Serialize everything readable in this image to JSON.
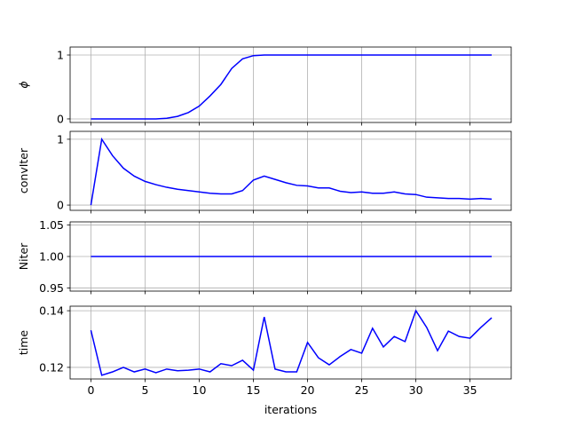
{
  "chart_data": [
    {
      "type": "line",
      "ylabel": "ϕ",
      "ylabel_italic": true,
      "grid": true,
      "x": [
        0,
        1,
        2,
        3,
        4,
        5,
        6,
        7,
        8,
        9,
        10,
        11,
        12,
        13,
        14,
        15,
        16,
        17,
        18,
        19,
        20,
        21,
        22,
        23,
        24,
        25,
        26,
        27,
        28,
        29,
        30,
        31,
        32,
        33,
        34,
        35,
        36,
        37
      ],
      "xlim": [
        -1.92,
        38.8
      ],
      "xticks": [
        0,
        5,
        10,
        15,
        20,
        25,
        30,
        35
      ],
      "ylim": [
        -0.056,
        1.125
      ],
      "yticks": [
        0,
        1
      ],
      "series": [
        {
          "name": "phi",
          "color": "#0000ff",
          "values": [
            0,
            0,
            0,
            0,
            0,
            0,
            0,
            0.01,
            0.04,
            0.1,
            0.2,
            0.36,
            0.54,
            0.79,
            0.94,
            0.99,
            1,
            1,
            1,
            1,
            1,
            1,
            1,
            1,
            1,
            1,
            1,
            1,
            1,
            1,
            1,
            1,
            1,
            1,
            1,
            1,
            1,
            1
          ]
        }
      ]
    },
    {
      "type": "line",
      "ylabel": "convIter",
      "grid": true,
      "x": [
        0,
        1,
        2,
        3,
        4,
        5,
        6,
        7,
        8,
        9,
        10,
        11,
        12,
        13,
        14,
        15,
        16,
        17,
        18,
        19,
        20,
        21,
        22,
        23,
        24,
        25,
        26,
        27,
        28,
        29,
        30,
        31,
        32,
        33,
        34,
        35,
        36,
        37
      ],
      "xlim": [
        -1.92,
        38.8
      ],
      "xticks": [
        0,
        5,
        10,
        15,
        20,
        25,
        30,
        35
      ],
      "ylim": [
        -0.08,
        1.12
      ],
      "yticks": [
        0,
        1
      ],
      "series": [
        {
          "name": "convIter",
          "color": "#0000ff",
          "values": [
            0,
            1,
            0.75,
            0.56,
            0.44,
            0.36,
            0.31,
            0.27,
            0.24,
            0.22,
            0.2,
            0.18,
            0.17,
            0.17,
            0.22,
            0.38,
            0.44,
            0.39,
            0.34,
            0.3,
            0.29,
            0.26,
            0.26,
            0.21,
            0.19,
            0.2,
            0.18,
            0.18,
            0.2,
            0.17,
            0.16,
            0.12,
            0.11,
            0.1,
            0.1,
            0.09,
            0.1,
            0.09
          ]
        }
      ]
    },
    {
      "type": "line",
      "ylabel": "Niter",
      "grid": true,
      "x": [
        0,
        1,
        2,
        3,
        4,
        5,
        6,
        7,
        8,
        9,
        10,
        11,
        12,
        13,
        14,
        15,
        16,
        17,
        18,
        19,
        20,
        21,
        22,
        23,
        24,
        25,
        26,
        27,
        28,
        29,
        30,
        31,
        32,
        33,
        34,
        35,
        36,
        37
      ],
      "xlim": [
        -1.92,
        38.8
      ],
      "xticks": [
        0,
        5,
        10,
        15,
        20,
        25,
        30,
        35
      ],
      "ylim": [
        0.945,
        1.055
      ],
      "yticks": [
        0.95,
        {
          "value": 1,
          "label": "1.00"
        },
        1.05
      ],
      "series": [
        {
          "name": "Niter",
          "color": "#0000ff",
          "values": [
            1,
            1,
            1,
            1,
            1,
            1,
            1,
            1,
            1,
            1,
            1,
            1,
            1,
            1,
            1,
            1,
            1,
            1,
            1,
            1,
            1,
            1,
            1,
            1,
            1,
            1,
            1,
            1,
            1,
            1,
            1,
            1,
            1,
            1,
            1,
            1,
            1,
            1
          ]
        }
      ]
    },
    {
      "type": "line",
      "ylabel": "time",
      "xlabel": "iterations",
      "grid": true,
      "x": [
        0,
        1,
        2,
        3,
        4,
        5,
        6,
        7,
        8,
        9,
        10,
        11,
        12,
        13,
        14,
        15,
        16,
        17,
        18,
        19,
        20,
        21,
        22,
        23,
        24,
        25,
        26,
        27,
        28,
        29,
        30,
        31,
        32,
        33,
        34,
        35,
        36,
        37
      ],
      "xlim": [
        -1.92,
        38.8
      ],
      "xticks": [
        0,
        5,
        10,
        15,
        20,
        25,
        30,
        35
      ],
      "ylim": [
        0.1159,
        0.1416
      ],
      "yticks": [
        0.12,
        0.14
      ],
      "series": [
        {
          "name": "time",
          "color": "#0000ff",
          "values": [
            0.1331,
            0.1172,
            0.1184,
            0.12,
            0.1184,
            0.1194,
            0.1181,
            0.1194,
            0.1188,
            0.119,
            0.1194,
            0.1184,
            0.1213,
            0.1206,
            0.1225,
            0.119,
            0.1378,
            0.1194,
            0.1184,
            0.1184,
            0.1288,
            0.1234,
            0.1209,
            0.1238,
            0.1263,
            0.125,
            0.1338,
            0.1272,
            0.1309,
            0.1291,
            0.14,
            0.1341,
            0.1259,
            0.1328,
            0.1309,
            0.1303,
            0.1341,
            0.1375
          ]
        }
      ]
    }
  ]
}
